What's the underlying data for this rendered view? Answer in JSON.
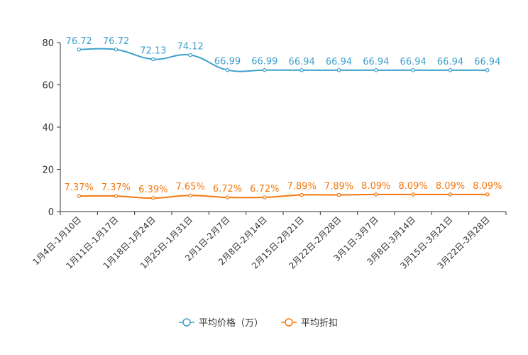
{
  "chart_data": {
    "type": "line",
    "title": "",
    "xlabel": "",
    "ylabel": "",
    "ylim": [
      0,
      80
    ],
    "yticks": [
      0,
      20,
      40,
      60,
      80
    ],
    "grid": false,
    "legend_position": "bottom-center",
    "categories": [
      "1月4日-1月10日",
      "1月11日-1月17日",
      "1月18日-1月24日",
      "1月25日-1月31日",
      "2月1日-2月7日",
      "2月8日-2月14日",
      "2月15日-2月21日",
      "2月22日-2月28日",
      "3月1日-3月7日",
      "3月8日-3月14日",
      "3月15日-3月21日",
      "3月22日-3月28日"
    ],
    "series": [
      {
        "name": "平均价格（万）",
        "color": "#3fa0cc",
        "values": [
          76.72,
          76.72,
          72.13,
          74.12,
          66.99,
          66.99,
          66.94,
          66.94,
          66.94,
          66.94,
          66.94,
          66.94
        ],
        "labels": [
          "76.72",
          "76.72",
          "72.13",
          "74.12",
          "66.99",
          "66.99",
          "66.94",
          "66.94",
          "66.94",
          "66.94",
          "66.94",
          "66.94"
        ]
      },
      {
        "name": "平均折扣",
        "color": "#f5780f",
        "values": [
          7.37,
          7.37,
          6.39,
          7.65,
          6.72,
          6.72,
          7.89,
          7.89,
          8.09,
          8.09,
          8.09,
          8.09
        ],
        "labels": [
          "7.37%",
          "7.37%",
          "6.39%",
          "7.65%",
          "6.72%",
          "6.72%",
          "7.89%",
          "7.89%",
          "8.09%",
          "8.09%",
          "8.09%",
          "8.09%"
        ]
      }
    ]
  }
}
